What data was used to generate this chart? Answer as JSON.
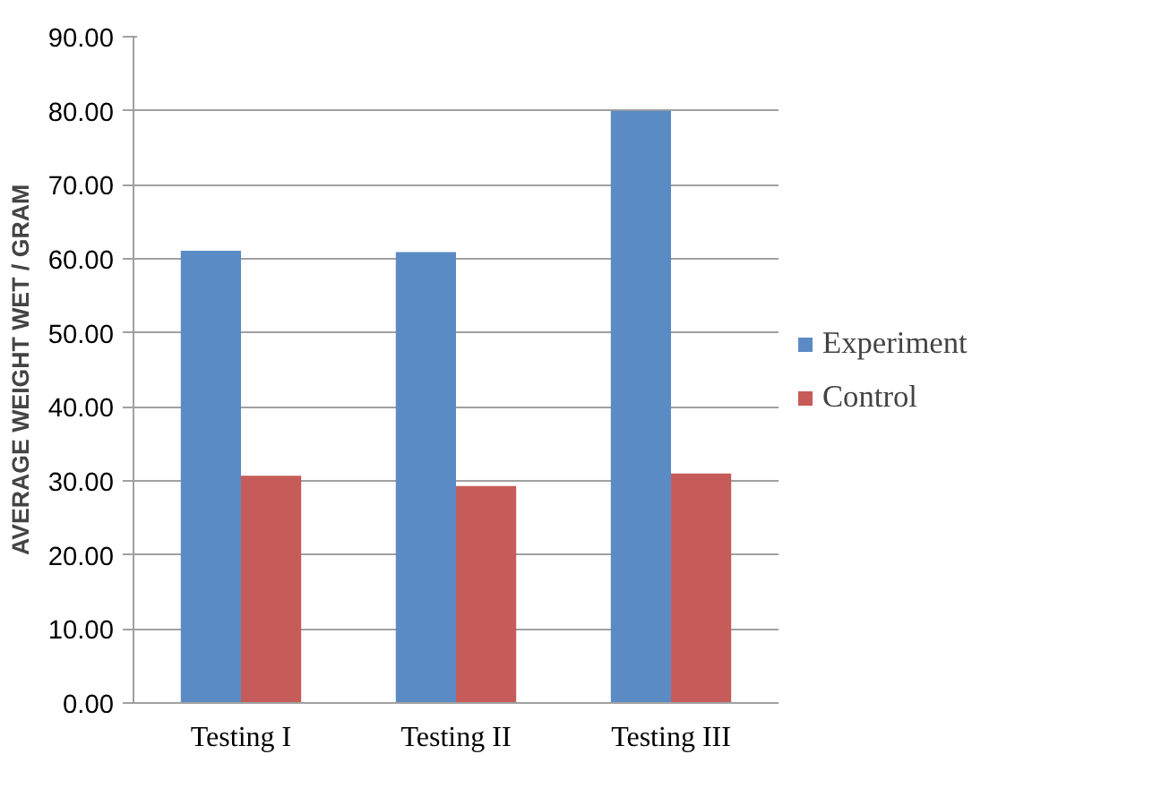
{
  "chart_data": {
    "type": "bar",
    "ylabel": "AVERAGE WEIGHT WET / GRAM",
    "categories": [
      "Testing I",
      "Testing II",
      "Testing III"
    ],
    "series": [
      {
        "name": "Experiment",
        "color": "#5b8bc5",
        "values": [
          61.1,
          60.9,
          80.0
        ]
      },
      {
        "name": "Control",
        "color": "#c65c59",
        "values": [
          30.7,
          29.3,
          31.0
        ]
      }
    ],
    "ylim": [
      0,
      90
    ],
    "yticks": [
      {
        "value": 0,
        "label": "0.00"
      },
      {
        "value": 10,
        "label": "10.00"
      },
      {
        "value": 20,
        "label": "20.00"
      },
      {
        "value": 30,
        "label": "30.00"
      },
      {
        "value": 40,
        "label": "40.00"
      },
      {
        "value": 50,
        "label": "50.00"
      },
      {
        "value": 60,
        "label": "60.00"
      },
      {
        "value": 70,
        "label": "70.00"
      },
      {
        "value": 80,
        "label": "80.00"
      },
      {
        "value": 90,
        "label": "90.00"
      }
    ],
    "grid": "y",
    "legend": "right"
  }
}
